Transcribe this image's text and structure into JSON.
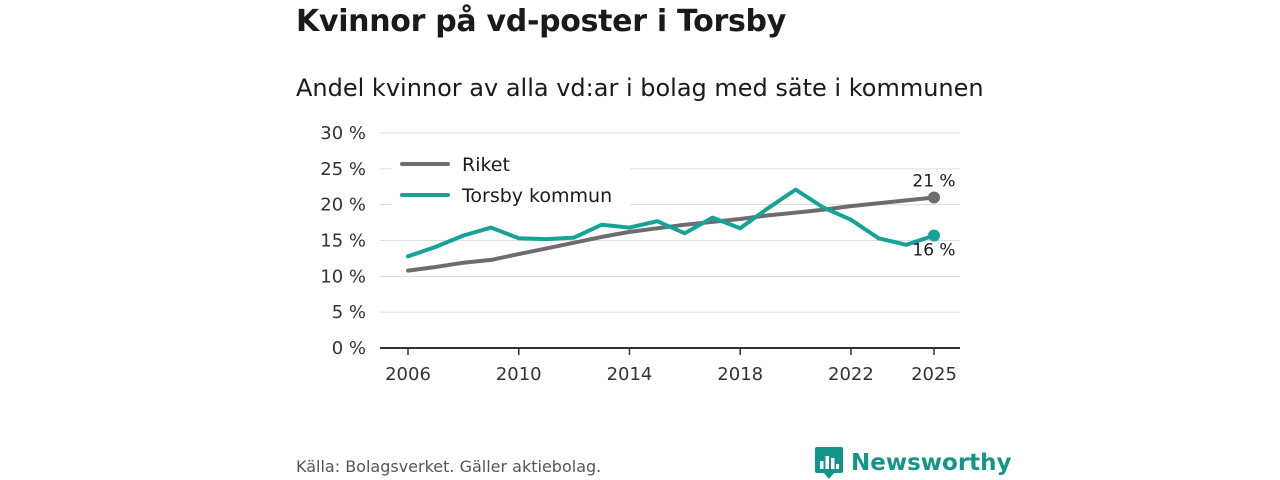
{
  "title": "Kvinnor på vd-poster i Torsby",
  "subtitle": "Andel kvinnor av alla vd:ar i bolag med säte i kommunen",
  "source": "Källa: Bolagsverket. Gäller aktiebolag.",
  "brand": {
    "name": "Newsworthy",
    "icon": "newsworthy-logo-icon",
    "color": "#14958b"
  },
  "chart_data": {
    "type": "line",
    "title": "Andel kvinnor av alla vd:ar i bolag med säte i kommunen",
    "xlabel": "",
    "ylabel": "",
    "xlim": [
      2006,
      2025
    ],
    "ylim": [
      0,
      30
    ],
    "x_ticks": [
      2006,
      2010,
      2014,
      2018,
      2022,
      2025
    ],
    "x_tick_labels": [
      "2006",
      "2010",
      "2014",
      "2018",
      "2022",
      "2025"
    ],
    "y_ticks": [
      0,
      5,
      10,
      15,
      20,
      25,
      30
    ],
    "y_tick_labels": [
      "0 %",
      "5 %",
      "10 %",
      "15 %",
      "20 %",
      "25 %",
      "30 %"
    ],
    "grid": true,
    "legend_position": "top-left",
    "x": [
      2006,
      2007,
      2008,
      2009,
      2010,
      2011,
      2012,
      2013,
      2014,
      2015,
      2016,
      2017,
      2018,
      2019,
      2020,
      2021,
      2022,
      2023,
      2024,
      2025
    ],
    "series": [
      {
        "name": "Riket",
        "color": "#6d6c71",
        "values": [
          10.8,
          11.3,
          11.9,
          12.3,
          13.1,
          13.9,
          14.7,
          15.5,
          16.2,
          16.7,
          17.2,
          17.6,
          18.0,
          18.5,
          18.9,
          19.3,
          19.8,
          20.2,
          20.6,
          21.0
        ],
        "end_label": "21 %"
      },
      {
        "name": "Torsby kommun",
        "color": "#14a396",
        "values": [
          12.8,
          14.1,
          15.7,
          16.8,
          15.3,
          15.2,
          15.4,
          17.2,
          16.8,
          17.7,
          16.0,
          18.2,
          16.7,
          19.5,
          22.1,
          19.6,
          17.9,
          15.3,
          14.4,
          15.7
        ],
        "end_label": "16 %"
      }
    ]
  }
}
